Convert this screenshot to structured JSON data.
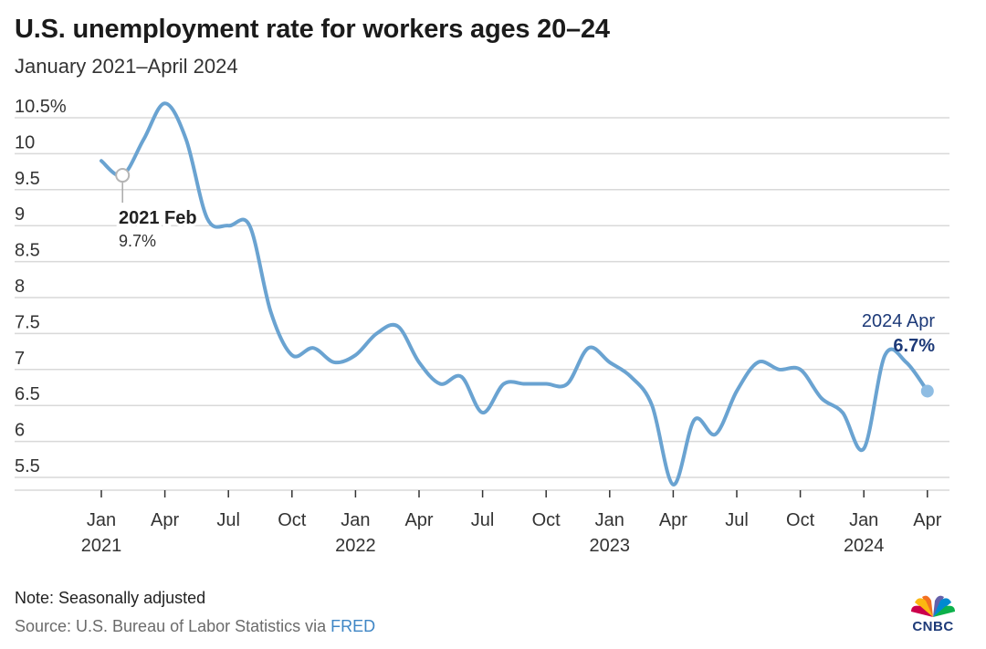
{
  "title": "U.S. unemployment rate for workers ages 20–24",
  "subtitle": "January 2021–April 2024",
  "note": "Note: Seasonally adjusted",
  "source_prefix": "Source: U.S. Bureau of Labor Statistics via ",
  "source_link": "FRED",
  "logo_text": "CNBC",
  "colors": {
    "line": "#6aa3d1",
    "grid": "#d9d9d9",
    "text": "#222222",
    "annotation_end": "#1d3a78",
    "source": "#6b6b6b",
    "link": "#3f86c5"
  },
  "chart_data": {
    "type": "line",
    "title": "U.S. unemployment rate for workers ages 20–24",
    "subtitle": "January 2021–April 2024",
    "ylim": [
      5.4,
      10.6
    ],
    "y_ticks": [
      5.5,
      6,
      6.5,
      7,
      7.5,
      8,
      8.5,
      9,
      9.5,
      10,
      10.5
    ],
    "y_tick_labels": [
      "5.5",
      "6",
      "6.5",
      "7",
      "7.5",
      "8",
      "8.5",
      "9",
      "9.5",
      "10",
      "10.5%"
    ],
    "x_ticks": [
      {
        "date": "2021-01",
        "month": "Jan",
        "year": "2021"
      },
      {
        "date": "2021-04",
        "month": "Apr",
        "year": ""
      },
      {
        "date": "2021-07",
        "month": "Jul",
        "year": ""
      },
      {
        "date": "2021-10",
        "month": "Oct",
        "year": ""
      },
      {
        "date": "2022-01",
        "month": "Jan",
        "year": "2022"
      },
      {
        "date": "2022-04",
        "month": "Apr",
        "year": ""
      },
      {
        "date": "2022-07",
        "month": "Jul",
        "year": ""
      },
      {
        "date": "2022-10",
        "month": "Oct",
        "year": ""
      },
      {
        "date": "2023-01",
        "month": "Jan",
        "year": "2023"
      },
      {
        "date": "2023-04",
        "month": "Apr",
        "year": ""
      },
      {
        "date": "2023-07",
        "month": "Jul",
        "year": ""
      },
      {
        "date": "2023-10",
        "month": "Oct",
        "year": ""
      },
      {
        "date": "2024-01",
        "month": "Jan",
        "year": "2024"
      },
      {
        "date": "2024-04",
        "month": "Apr",
        "year": ""
      }
    ],
    "grid": true,
    "series": [
      {
        "values": [
          {
            "x": "2021-01",
            "y": 9.9
          },
          {
            "x": "2021-02",
            "y": 9.7
          },
          {
            "x": "2021-03",
            "y": 10.2
          },
          {
            "x": "2021-04",
            "y": 10.7
          },
          {
            "x": "2021-05",
            "y": 10.2
          },
          {
            "x": "2021-06",
            "y": 9.1
          },
          {
            "x": "2021-07",
            "y": 9.0
          },
          {
            "x": "2021-08",
            "y": 9.0
          },
          {
            "x": "2021-09",
            "y": 7.8
          },
          {
            "x": "2021-10",
            "y": 7.2
          },
          {
            "x": "2021-11",
            "y": 7.3
          },
          {
            "x": "2021-12",
            "y": 7.1
          },
          {
            "x": "2022-01",
            "y": 7.2
          },
          {
            "x": "2022-02",
            "y": 7.5
          },
          {
            "x": "2022-03",
            "y": 7.6
          },
          {
            "x": "2022-04",
            "y": 7.1
          },
          {
            "x": "2022-05",
            "y": 6.8
          },
          {
            "x": "2022-06",
            "y": 6.9
          },
          {
            "x": "2022-07",
            "y": 6.4
          },
          {
            "x": "2022-08",
            "y": 6.8
          },
          {
            "x": "2022-09",
            "y": 6.8
          },
          {
            "x": "2022-10",
            "y": 6.8
          },
          {
            "x": "2022-11",
            "y": 6.8
          },
          {
            "x": "2022-12",
            "y": 7.3
          },
          {
            "x": "2023-01",
            "y": 7.1
          },
          {
            "x": "2023-02",
            "y": 6.9
          },
          {
            "x": "2023-03",
            "y": 6.5
          },
          {
            "x": "2023-04",
            "y": 5.4
          },
          {
            "x": "2023-05",
            "y": 6.3
          },
          {
            "x": "2023-06",
            "y": 6.1
          },
          {
            "x": "2023-07",
            "y": 6.7
          },
          {
            "x": "2023-08",
            "y": 7.1
          },
          {
            "x": "2023-09",
            "y": 7.0
          },
          {
            "x": "2023-10",
            "y": 7.0
          },
          {
            "x": "2023-11",
            "y": 6.6
          },
          {
            "x": "2023-12",
            "y": 6.4
          },
          {
            "x": "2024-01",
            "y": 5.9
          },
          {
            "x": "2024-02",
            "y": 7.2
          },
          {
            "x": "2024-03",
            "y": 7.1
          },
          {
            "x": "2024-04",
            "y": 6.7
          }
        ]
      }
    ],
    "annotations": [
      {
        "x": "2021-02",
        "y": 9.7,
        "label": "2021 Feb",
        "value_label": "9.7%",
        "marker": "hollow"
      },
      {
        "x": "2024-04",
        "y": 6.7,
        "label": "2024 Apr",
        "value_label": "6.7%",
        "marker": "filled"
      }
    ]
  }
}
